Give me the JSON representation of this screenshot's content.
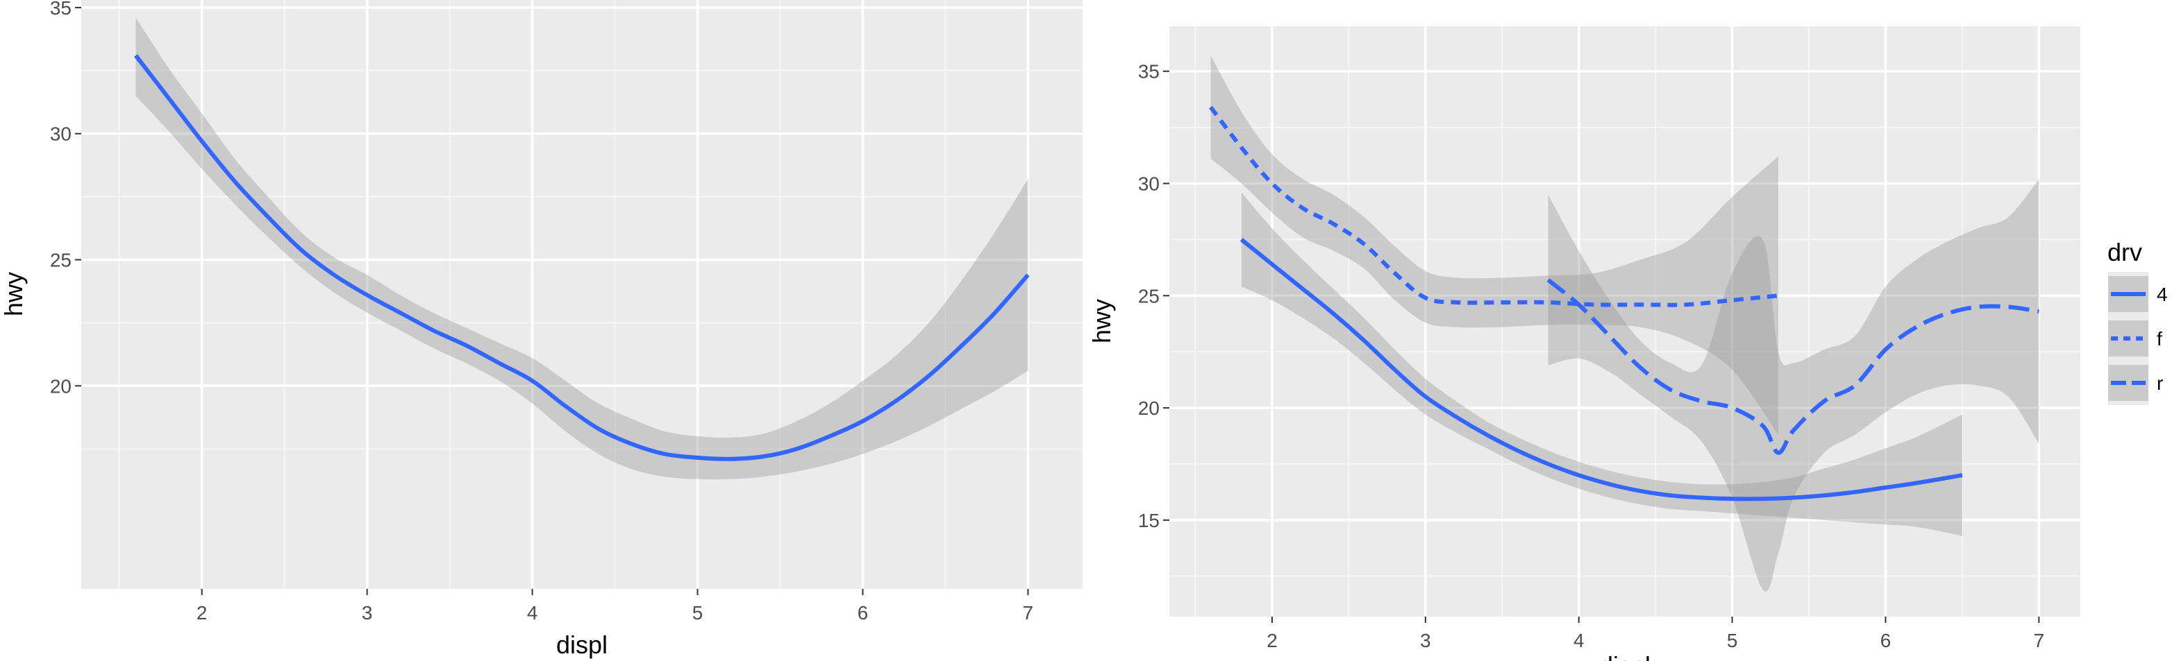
{
  "colors": {
    "panel": "#ebebeb",
    "grid_major": "#ffffff",
    "grid_minor": "#f5f5f5",
    "line": "#3366ff",
    "ribbon": "#999999",
    "tick": "#333333",
    "text": "#4d4d4d"
  },
  "chart_data": [
    {
      "type": "line",
      "title": "",
      "xlabel": "displ",
      "ylabel": "hwy",
      "xlim": [
        1.27,
        7.33
      ],
      "ylim": [
        11.95,
        35.3
      ],
      "xticks": [
        2,
        3,
        4,
        5,
        6,
        7
      ],
      "xtick_labels": [
        "2",
        "3",
        "4",
        "5",
        "6",
        "7"
      ],
      "yticks": [
        20,
        25,
        30,
        35
      ],
      "ytick_labels": [
        "20",
        "25",
        "30",
        "35"
      ],
      "grid": true,
      "legend": null,
      "series": [
        {
          "linetype": "solid",
          "x": [
            1.6,
            1.8,
            2.0,
            2.2,
            2.4,
            2.6,
            2.8,
            3.0,
            3.2,
            3.4,
            3.6,
            3.8,
            4.0,
            4.2,
            4.4,
            4.6,
            4.8,
            5.0,
            5.2,
            5.4,
            5.6,
            5.8,
            6.0,
            6.2,
            6.4,
            6.6,
            6.8,
            7.0
          ],
          "y": [
            33.1,
            31.4,
            29.7,
            28.1,
            26.7,
            25.4,
            24.4,
            23.6,
            22.9,
            22.2,
            21.6,
            20.9,
            20.2,
            19.2,
            18.3,
            17.7,
            17.3,
            17.15,
            17.1,
            17.2,
            17.5,
            18.0,
            18.6,
            19.4,
            20.4,
            21.6,
            22.9,
            24.4
          ],
          "ci_low": [
            31.5,
            30.1,
            28.6,
            27.2,
            25.9,
            24.7,
            23.7,
            22.9,
            22.2,
            21.5,
            20.9,
            20.2,
            19.3,
            18.2,
            17.3,
            16.7,
            16.4,
            16.3,
            16.3,
            16.4,
            16.6,
            16.9,
            17.3,
            17.8,
            18.4,
            19.1,
            19.8,
            20.6
          ],
          "ci_high": [
            34.6,
            32.6,
            30.8,
            29.0,
            27.5,
            26.1,
            25.1,
            24.4,
            23.6,
            22.9,
            22.3,
            21.7,
            21.1,
            20.2,
            19.3,
            18.7,
            18.2,
            18.0,
            17.95,
            18.1,
            18.6,
            19.3,
            20.2,
            21.2,
            22.5,
            24.2,
            26.1,
            28.2
          ]
        }
      ]
    },
    {
      "type": "line",
      "title": "",
      "xlabel": "displ",
      "ylabel": "hwy",
      "xlim": [
        1.33,
        7.27
      ],
      "ylim": [
        10.7,
        37.0
      ],
      "xticks": [
        2,
        3,
        4,
        5,
        6,
        7
      ],
      "xtick_labels": [
        "2",
        "3",
        "4",
        "5",
        "6",
        "7"
      ],
      "yticks": [
        15,
        20,
        25,
        30,
        35
      ],
      "ytick_labels": [
        "15",
        "20",
        "25",
        "30",
        "35"
      ],
      "grid": true,
      "legend": {
        "title": "drv",
        "position": "right"
      },
      "series": [
        {
          "name": "4",
          "linetype": "solid",
          "x": [
            1.8,
            2.0,
            2.2,
            2.4,
            2.6,
            2.8,
            3.0,
            3.2,
            3.4,
            3.6,
            3.8,
            4.0,
            4.2,
            4.4,
            4.6,
            4.8,
            5.0,
            5.2,
            5.4,
            5.6,
            5.8,
            6.0,
            6.2,
            6.5
          ],
          "y": [
            27.5,
            26.4,
            25.3,
            24.2,
            23.0,
            21.7,
            20.5,
            19.6,
            18.8,
            18.1,
            17.5,
            17.0,
            16.6,
            16.3,
            16.1,
            16.0,
            15.95,
            15.95,
            16.0,
            16.1,
            16.25,
            16.45,
            16.65,
            17.0
          ],
          "ci_low": [
            25.4,
            24.8,
            24.0,
            23.1,
            22.0,
            20.8,
            19.7,
            18.9,
            18.2,
            17.5,
            16.9,
            16.4,
            16.0,
            15.7,
            15.5,
            15.4,
            15.3,
            15.2,
            15.1,
            15.0,
            14.9,
            14.8,
            14.7,
            14.3
          ],
          "ci_high": [
            29.6,
            28.0,
            26.6,
            25.3,
            24.0,
            22.6,
            21.3,
            20.3,
            19.4,
            18.7,
            18.1,
            17.6,
            17.2,
            16.9,
            16.7,
            16.6,
            16.6,
            16.7,
            16.9,
            17.3,
            17.7,
            18.2,
            18.7,
            19.7
          ]
        },
        {
          "name": "f",
          "linetype": "dashed",
          "x": [
            1.6,
            1.8,
            2.0,
            2.2,
            2.4,
            2.6,
            2.8,
            3.0,
            3.2,
            3.5,
            3.8,
            4.1,
            4.4,
            4.7,
            5.0,
            5.3
          ],
          "y": [
            33.4,
            31.6,
            30.0,
            28.9,
            28.2,
            27.3,
            26.0,
            24.9,
            24.7,
            24.7,
            24.7,
            24.6,
            24.6,
            24.6,
            24.8,
            25.0
          ],
          "ci_low": [
            31.1,
            30.0,
            28.7,
            27.6,
            27.0,
            26.2,
            24.8,
            23.8,
            23.6,
            23.6,
            23.7,
            23.7,
            23.6,
            23.0,
            21.7,
            18.8
          ],
          "ci_high": [
            35.7,
            33.2,
            31.3,
            30.2,
            29.5,
            28.5,
            27.2,
            26.1,
            25.8,
            25.8,
            25.9,
            26.0,
            26.6,
            27.4,
            29.4,
            31.2
          ]
        },
        {
          "name": "r",
          "linetype": "longdash",
          "x": [
            3.8,
            4.0,
            4.2,
            4.4,
            4.6,
            4.8,
            5.0,
            5.2,
            5.3,
            5.4,
            5.6,
            5.8,
            6.0,
            6.2,
            6.4,
            6.6,
            6.8,
            7.0
          ],
          "y": [
            25.7,
            24.6,
            23.2,
            21.8,
            20.8,
            20.3,
            20.0,
            19.2,
            18.0,
            19.0,
            20.3,
            21.0,
            22.6,
            23.6,
            24.2,
            24.5,
            24.5,
            24.3
          ],
          "ci_low": [
            21.9,
            22.2,
            21.6,
            20.6,
            19.6,
            18.5,
            16.0,
            11.9,
            13.5,
            16.0,
            18.0,
            18.8,
            19.8,
            20.6,
            21.0,
            21.0,
            20.5,
            18.4
          ],
          "ci_high": [
            29.5,
            27.0,
            24.8,
            23.0,
            22.0,
            21.9,
            26.0,
            27.5,
            22.5,
            22.0,
            22.6,
            23.2,
            25.4,
            26.6,
            27.4,
            28.0,
            28.5,
            30.2
          ]
        }
      ]
    }
  ]
}
